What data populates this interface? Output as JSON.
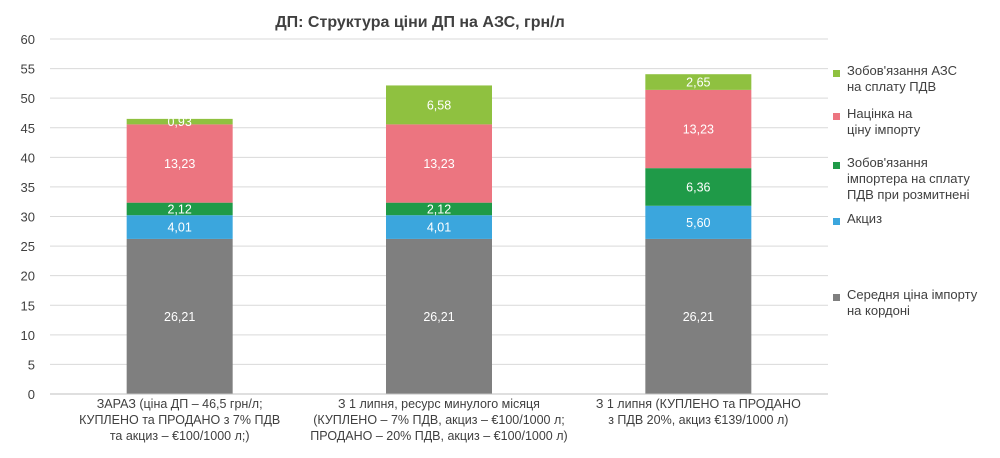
{
  "chart_data": {
    "type": "bar",
    "stacked": true,
    "title": "ДП: Структура ціни ДП на АЗС, грн/л",
    "xlabel": "",
    "ylabel": "",
    "ylim": [
      0,
      60
    ],
    "yticks": [
      0,
      5,
      10,
      15,
      20,
      25,
      30,
      35,
      40,
      45,
      50,
      55,
      60
    ],
    "grid": true,
    "legend_position": "right",
    "categories": [
      [
        "ЗАРАЗ (ціна ДП – 46,5 грн/л;",
        "КУПЛЕНО та ПРОДАНО з 7% ПДВ",
        "та акциз – €100/1000 л;)"
      ],
      [
        "З 1 липня, ресурс минулого місяця",
        "(КУПЛЕНО – 7% ПДВ, акциз – €100/1000 л;",
        "ПРОДАНО – 20% ПДВ, акциз – €100/1000 л)"
      ],
      [
        "З 1 липня (КУПЛЕНО та ПРОДАНО",
        "з ПДВ 20%, акциз €139/1000 л)"
      ]
    ],
    "series": [
      {
        "name": "Середня ціна імпорту на кордоні",
        "legend_lines": [
          "Середня ціна імпорту",
          "на кордоні"
        ],
        "color": "#7f7f7f",
        "values": [
          26.21,
          26.21,
          26.21
        ],
        "labels": [
          "26,21",
          "26,21",
          "26,21"
        ]
      },
      {
        "name": "Акциз",
        "legend_lines": [
          "Акциз"
        ],
        "color": "#3ba6dd",
        "values": [
          4.01,
          4.01,
          5.6
        ],
        "labels": [
          "4,01",
          "4,01",
          "5,60"
        ]
      },
      {
        "name": "Зобов'язання імпортера на сплату ПДВ при розмитнені",
        "legend_lines": [
          "Зобов'язання",
          "імпортера на сплату",
          "ПДВ при розмитнені"
        ],
        "color": "#1f9a48",
        "values": [
          2.12,
          2.12,
          6.36
        ],
        "labels": [
          "2,12",
          "2,12",
          "6,36"
        ]
      },
      {
        "name": "Націнка на ціну імпорту",
        "legend_lines": [
          "Націнка на",
          "ціну імпорту"
        ],
        "color": "#ec7580",
        "values": [
          13.23,
          13.23,
          13.23
        ],
        "labels": [
          "13,23",
          "13,23",
          "13,23"
        ]
      },
      {
        "name": "Зобов'язання АЗС на сплату ПДВ",
        "legend_lines": [
          "Зобов'язання АЗС",
          "на сплату ПДВ"
        ],
        "color": "#8fc140",
        "values": [
          0.93,
          6.58,
          2.65
        ],
        "labels": [
          "0,93",
          "6,58",
          "2,65"
        ]
      }
    ]
  }
}
